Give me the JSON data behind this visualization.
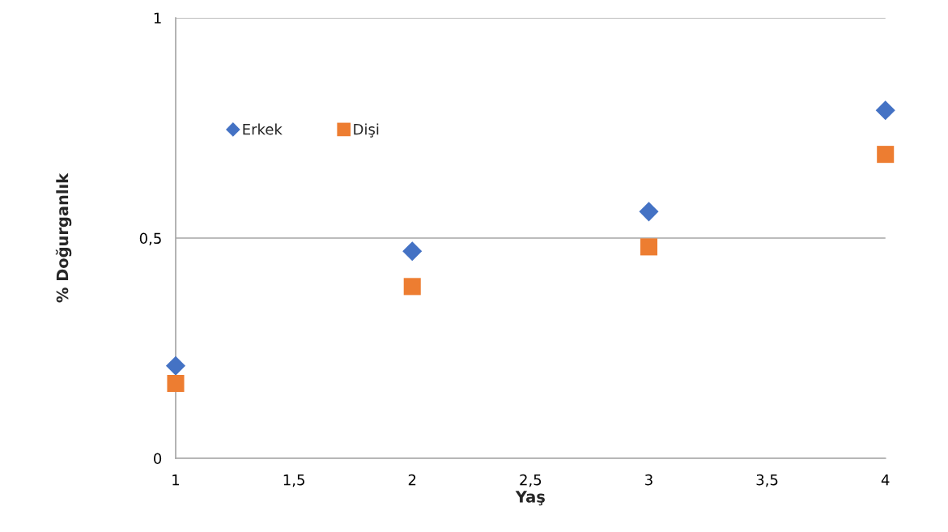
{
  "chart_data": {
    "type": "scatter",
    "xlabel": "Yaş",
    "ylabel": "% Doğurganlık",
    "series": [
      {
        "name": "Erkek",
        "color": "#4472c4",
        "marker": "diamond",
        "x": [
          1,
          2,
          3,
          4
        ],
        "values": [
          0.21,
          0.47,
          0.56,
          0.79
        ]
      },
      {
        "name": "Dişi",
        "color": "#ed7d31",
        "marker": "square",
        "x": [
          1,
          2,
          3,
          4
        ],
        "values": [
          0.17,
          0.39,
          0.48,
          0.69
        ]
      }
    ],
    "xlim": [
      1,
      4
    ],
    "xticks": [
      1,
      {
        "value": 1.5,
        "label": "1,5"
      },
      2,
      {
        "value": 2.5,
        "label": "2,5"
      },
      3,
      {
        "value": 3.5,
        "label": "3,5"
      },
      4
    ],
    "ylim": [
      0,
      1
    ],
    "yticks": [
      0,
      {
        "value": 0.5,
        "label": "0,5"
      },
      1
    ],
    "grid": "y",
    "legend": "top left"
  }
}
